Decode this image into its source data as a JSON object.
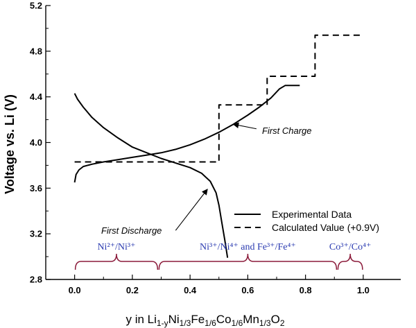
{
  "chart_data": {
    "type": "line",
    "xlabel": {
      "parts": [
        {
          "t": "y in Li",
          "s": "n"
        },
        {
          "t": "1-y",
          "s": "sub"
        },
        {
          "t": "Ni",
          "s": "n"
        },
        {
          "t": "1/3",
          "s": "sub"
        },
        {
          "t": "Fe",
          "s": "n"
        },
        {
          "t": "1/6",
          "s": "sub"
        },
        {
          "t": "Co",
          "s": "n"
        },
        {
          "t": "1/6",
          "s": "sub"
        },
        {
          "t": "Mn",
          "s": "n"
        },
        {
          "t": "1/3",
          "s": "sub"
        },
        {
          "t": "O",
          "s": "n"
        },
        {
          "t": "2",
          "s": "sub"
        }
      ]
    },
    "ylabel": "Voltage vs. Li (V)",
    "xlim": [
      -0.1,
      1.13
    ],
    "ylim": [
      2.8,
      5.2
    ],
    "x_ticks": [
      0.0,
      0.2,
      0.4,
      0.6,
      0.8,
      1.0
    ],
    "x_tick_labels": [
      "0.0",
      "0.2",
      "0.4",
      "0.6",
      "0.8",
      "1.0"
    ],
    "y_ticks": [
      2.8,
      3.2,
      3.6,
      4.0,
      4.4,
      4.8,
      5.2
    ],
    "y_tick_labels": [
      "2.8",
      "3.2",
      "3.6",
      "4.0",
      "4.4",
      "4.8",
      "5.2"
    ],
    "series": [
      {
        "name": "First Charge",
        "legend": "Experimental Data",
        "style": "solid",
        "points": [
          [
            0.0,
            3.65
          ],
          [
            0.005,
            3.72
          ],
          [
            0.015,
            3.76
          ],
          [
            0.03,
            3.79
          ],
          [
            0.06,
            3.81
          ],
          [
            0.1,
            3.83
          ],
          [
            0.15,
            3.85
          ],
          [
            0.2,
            3.87
          ],
          [
            0.25,
            3.89
          ],
          [
            0.3,
            3.91
          ],
          [
            0.35,
            3.94
          ],
          [
            0.4,
            3.98
          ],
          [
            0.45,
            4.03
          ],
          [
            0.5,
            4.09
          ],
          [
            0.55,
            4.16
          ],
          [
            0.6,
            4.24
          ],
          [
            0.64,
            4.31
          ],
          [
            0.68,
            4.39
          ],
          [
            0.71,
            4.47
          ],
          [
            0.73,
            4.5
          ],
          [
            0.78,
            4.5
          ]
        ]
      },
      {
        "name": "First Discharge",
        "legend": "Experimental Data",
        "style": "solid",
        "points": [
          [
            0.0,
            4.43
          ],
          [
            0.01,
            4.38
          ],
          [
            0.03,
            4.31
          ],
          [
            0.06,
            4.22
          ],
          [
            0.1,
            4.13
          ],
          [
            0.15,
            4.04
          ],
          [
            0.2,
            3.96
          ],
          [
            0.25,
            3.91
          ],
          [
            0.3,
            3.86
          ],
          [
            0.35,
            3.82
          ],
          [
            0.4,
            3.78
          ],
          [
            0.44,
            3.73
          ],
          [
            0.47,
            3.66
          ],
          [
            0.49,
            3.56
          ],
          [
            0.5,
            3.45
          ],
          [
            0.51,
            3.3
          ],
          [
            0.52,
            3.15
          ],
          [
            0.53,
            2.99
          ]
        ]
      },
      {
        "name": "Calculated Value (+0.9V)",
        "legend": "Calculated Value (+0.9V)",
        "style": "dashed",
        "points": [
          [
            0.0,
            3.83
          ],
          [
            0.5,
            3.83
          ],
          [
            0.5,
            4.33
          ],
          [
            0.667,
            4.33
          ],
          [
            0.667,
            4.58
          ],
          [
            0.833,
            4.58
          ],
          [
            0.833,
            4.94
          ],
          [
            1.0,
            4.94
          ]
        ]
      }
    ],
    "legend": {
      "location": "lower-right",
      "items": [
        {
          "label": "Experimental Data",
          "style": "solid"
        },
        {
          "label": "Calculated Value (+0.9V)",
          "style": "dashed"
        }
      ]
    },
    "annotations": [
      {
        "text": "First Charge",
        "arrow_from": [
          0.63,
          4.12
        ],
        "arrow_to": [
          0.55,
          4.16
        ]
      },
      {
        "text": "First Discharge",
        "arrow_from": [
          0.35,
          3.23
        ],
        "arrow_to": [
          0.46,
          3.59
        ]
      }
    ],
    "redox_regions": [
      {
        "label": "Ni²⁺/Ni³⁺",
        "x_start": 0.0,
        "x_end": 0.29
      },
      {
        "label": "Ni³⁺/Ni⁴⁺ and Fe³⁺/Fe⁴⁺",
        "x_start": 0.29,
        "x_end": 0.91
      },
      {
        "label": "Co³⁺/Co⁴⁺",
        "x_start": 0.91,
        "x_end": 1.0
      }
    ],
    "colors": {
      "axis": "#000000",
      "series": "#000000",
      "redox_label": "#2a3ab0",
      "brace": "#8b1a3a"
    }
  }
}
